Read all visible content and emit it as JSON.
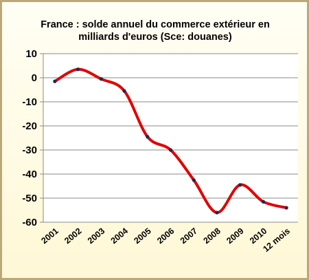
{
  "chart_data": {
    "type": "line",
    "title_lines": [
      "France : solde annuel du commerce extérieur  en",
      "milliards d'euros (Sce: douanes)"
    ],
    "categories": [
      "2001",
      "2002",
      "2003",
      "2004",
      "2005",
      "2006",
      "2007",
      "2008",
      "2009",
      "2010",
      "12 mois"
    ],
    "values": [
      -1.5,
      3.5,
      -0.5,
      -5.5,
      -24.5,
      -30,
      -42.5,
      -56,
      -44.5,
      -51.5,
      -54
    ],
    "ylim": [
      -60,
      10
    ],
    "yticks": [
      10,
      0,
      -10,
      -20,
      -30,
      -40,
      -50,
      -60
    ],
    "grid": true,
    "colors": {
      "line": "#e00000",
      "marker": "#1a2a50",
      "plot_background": "#ffffff",
      "chart_background": "#fffde7",
      "outer_background": "#b8a87a",
      "gridline": "#8a8a8a"
    }
  }
}
